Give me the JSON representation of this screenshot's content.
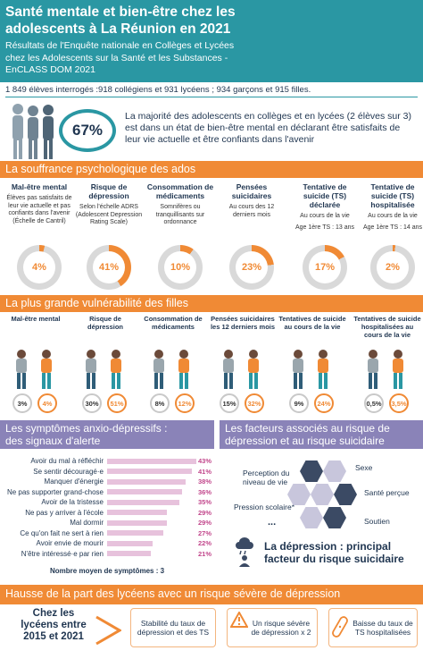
{
  "header": {
    "title_line1": "Santé mentale et bien-être chez les",
    "title_line2": "adolescents à La Réunion en 2021",
    "subtitle_line1": "Résultats de l'Enquête nationale en Collèges et Lycées",
    "subtitle_line2": "chez les Adolescents sur la Santé et les Substances -",
    "subtitle_line3": "EnCLASS DOM 2021"
  },
  "sample": "1 849 élèves interrogés :918 collégiens et 931 lycéens ; 934 garçons et 915 filles.",
  "headline": {
    "percent": "67%",
    "text": "La majorité des adolescents en collèges et en lycées (2 élèves sur 3) est dans un état de bien-être mental en déclarant être satisfaits de leur vie actuelle et être confiants dans l'avenir"
  },
  "colors": {
    "teal": "#2a97a3",
    "orange": "#f08a35",
    "purple": "#8a83b8",
    "pink_bar": "#e7c2dc",
    "pink_text": "#c2478c",
    "grey_ring": "#c9c9c9",
    "navy": "#1f3550"
  },
  "suffering": {
    "title": "La souffrance psychologique des ados",
    "items": [
      {
        "title": "Mal-être mental",
        "desc": "Élèves pas satisfaits de leur vie actuelle et pas confiants dans l'avenir (Échelle de Cantril)",
        "value": "4%",
        "pct": 4
      },
      {
        "title": "Risque de dépression",
        "desc": "Selon l'échelle ADRS (Adolescent Depression Rating Scale)",
        "value": "41%",
        "pct": 41
      },
      {
        "title": "Consommation de médicaments",
        "desc": "Somnifères ou tranquillisants sur ordonnance",
        "value": "10%",
        "pct": 10
      },
      {
        "title": "Pensées suicidaires",
        "desc": "Au cours des 12 derniers mois",
        "value": "23%",
        "pct": 23
      },
      {
        "title": "Tentative de suicide (TS) déclarée",
        "desc": "Au cours de la vie",
        "desc2": "Age 1ère TS : 13 ans",
        "value": "17%",
        "pct": 17
      },
      {
        "title": "Tentative de suicide (TS) hospitalisée",
        "desc": "Au cours de la vie",
        "desc2": "Age 1ère TS : 14 ans",
        "value": "2%",
        "pct": 2
      }
    ]
  },
  "girls": {
    "title": "La plus grande vulnérabilité des filles",
    "items": [
      {
        "title": "Mal-être mental",
        "boys": "3%",
        "girls": "4%"
      },
      {
        "title": "Risque de dépression",
        "boys": "30%",
        "girls": "51%"
      },
      {
        "title": "Consommation de médicaments",
        "boys": "8%",
        "girls": "12%"
      },
      {
        "title": "Pensées suicidaires les 12 derniers mois",
        "boys": "15%",
        "girls": "32%"
      },
      {
        "title": "Tentatives de suicide au cours de la vie",
        "boys": "9%",
        "girls": "24%"
      },
      {
        "title": "Tentatives de suicide hospitalisées au cours de la vie",
        "boys": "0,5%",
        "girls": "3,5%"
      }
    ]
  },
  "symptoms": {
    "title_line1": "Les symptômes anxio-dépressifs :",
    "title_line2": "des signaux d'alerte",
    "footer": "Nombre moyen de symptômes : 3"
  },
  "chart_data": {
    "type": "bar",
    "orientation": "horizontal",
    "categories": [
      "Avoir du mal à réfléchir",
      "Se sentir découragé·e",
      "Manquer d'énergie",
      "Ne pas supporter grand-chose",
      "Avoir de la tristesse",
      "Ne pas y arriver à l'école",
      "Mal dormir",
      "Ce qu'on fait ne sert à rien",
      "Avoir envie de mourir",
      "N'être intéressé·e par rien"
    ],
    "values": [
      43,
      41,
      38,
      36,
      35,
      29,
      29,
      27,
      22,
      21
    ],
    "labels": [
      "43%",
      "41%",
      "38%",
      "36%",
      "35%",
      "29%",
      "29%",
      "27%",
      "22%",
      "21%"
    ],
    "xlim": [
      0,
      43
    ]
  },
  "factors": {
    "title_line1": "Les facteurs associés au risque de",
    "title_line2": "dépression et au risque suicidaire",
    "left": [
      "Perception du niveau de vie",
      "Pression scolaire*"
    ],
    "right": [
      "Sexe",
      "Santé perçue",
      "Soutien"
    ],
    "ellipsis": "...",
    "conclusion_line1": "La dépression : principal",
    "conclusion_line2": "facteur du risque suicidaire"
  },
  "bottom": {
    "title": "Hausse de la part des lycéens avec un risque sévère de dépression",
    "lead": "Chez les lycéens entre 2015 et 2021",
    "boxes": [
      "Stabilité du taux de dépression et des TS",
      "Un risque sévère de dépression x 2",
      "Baisse du taux de TS hospitalisées"
    ]
  }
}
